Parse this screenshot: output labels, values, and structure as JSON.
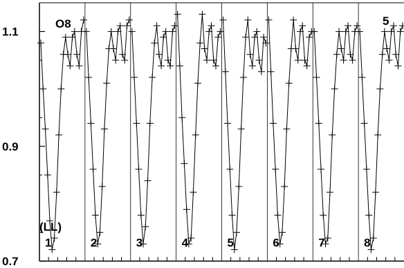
{
  "chart_data": {
    "type": "line",
    "title": "",
    "xlabel": "",
    "ylabel": "",
    "ylim": [
      0.7,
      1.15
    ],
    "y_ticks": [
      {
        "value": 0.7,
        "label": "0.7"
      },
      {
        "value": 0.9,
        "label": "0.9"
      },
      {
        "value": 1.1,
        "label": "1.1"
      }
    ],
    "panel_count": 8,
    "panel_labels": [
      "1",
      "2",
      "3",
      "4",
      "5",
      "6",
      "7",
      "8"
    ],
    "annotations": {
      "top_left": "O8",
      "top_right": "5",
      "bottom_left": "(LL)"
    },
    "markers": "plus",
    "grid": false,
    "legend": "none",
    "template": [
      1.06,
      1.0,
      0.94,
      0.86,
      0.78,
      0.72,
      0.74,
      0.82,
      0.92,
      1.0,
      1.06,
      1.09,
      1.06,
      1.04,
      1.08,
      1.1,
      1.06,
      1.04,
      1.09,
      1.11
    ],
    "series": [
      {
        "values": [
          1.08,
          1.0,
          0.93,
          0.85,
          0.77,
          0.72,
          0.74,
          0.82,
          0.92,
          1.0,
          1.06,
          1.09,
          1.06,
          1.04,
          1.09,
          1.1,
          1.06,
          1.04,
          1.1,
          1.12
        ]
      },
      {
        "values": [
          1.1,
          1.02,
          0.94,
          0.86,
          0.78,
          0.73,
          0.75,
          0.83,
          0.93,
          1.01,
          1.07,
          1.1,
          1.07,
          1.05,
          1.1,
          1.11,
          1.06,
          1.05,
          1.11,
          1.12
        ]
      },
      {
        "values": [
          1.1,
          1.02,
          0.94,
          0.86,
          0.78,
          0.73,
          0.76,
          0.84,
          0.94,
          1.02,
          1.08,
          1.11,
          1.06,
          1.04,
          1.09,
          1.1,
          1.05,
          1.04,
          1.1,
          1.11
        ]
      },
      {
        "values": [
          1.13,
          1.04,
          0.95,
          0.87,
          0.79,
          0.73,
          0.74,
          0.82,
          0.92,
          1.01,
          1.08,
          1.13,
          1.07,
          1.05,
          1.1,
          1.11,
          1.05,
          1.04,
          1.09,
          1.1
        ]
      },
      {
        "values": [
          1.12,
          1.03,
          0.94,
          0.86,
          0.78,
          0.72,
          0.75,
          0.83,
          0.93,
          1.02,
          1.09,
          1.12,
          1.06,
          1.04,
          1.09,
          1.1,
          1.05,
          1.03,
          1.09,
          1.08
        ]
      },
      {
        "values": [
          1.12,
          1.03,
          0.94,
          0.86,
          0.78,
          0.73,
          0.75,
          0.83,
          0.93,
          1.01,
          1.07,
          1.12,
          1.07,
          1.05,
          1.1,
          1.11,
          1.05,
          1.04,
          1.09,
          1.1
        ]
      },
      {
        "values": [
          1.1,
          1.02,
          0.94,
          0.86,
          0.78,
          0.73,
          0.74,
          0.82,
          0.92,
          1.0,
          1.06,
          1.1,
          1.07,
          1.05,
          1.1,
          1.11,
          1.06,
          1.05,
          1.1,
          1.11
        ]
      },
      {
        "values": [
          1.1,
          1.02,
          0.94,
          0.86,
          0.78,
          0.72,
          0.74,
          0.82,
          0.92,
          1.0,
          1.06,
          1.1,
          1.07,
          1.05,
          1.1,
          1.11,
          1.06,
          1.04,
          1.1,
          1.11
        ]
      }
    ]
  }
}
